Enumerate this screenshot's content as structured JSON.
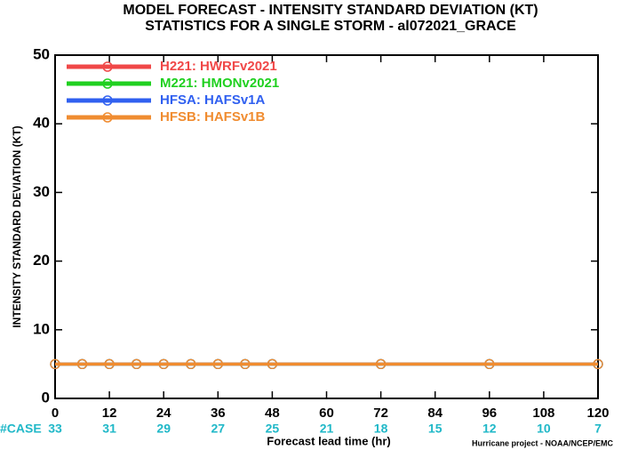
{
  "chart_data": {
    "type": "line",
    "title": "MODEL FORECAST - INTENSITY STANDARD DEVIATION (KT)",
    "subtitle": "STATISTICS FOR A SINGLE STORM - al072021_GRACE",
    "y_label": "INTENSITY STANDARD DEVIATION (KT)",
    "x_label": "Forecast lead time (hr)",
    "footer": "Hurricane project - NOAA/NCEP/EMC",
    "case_label": "#CASE",
    "case_counts": [
      33,
      31,
      29,
      27,
      25,
      21,
      18,
      15,
      12,
      10,
      7
    ],
    "case_color": "#20b8c8",
    "x": [
      0,
      6,
      12,
      18,
      24,
      30,
      36,
      42,
      48,
      72,
      96,
      120
    ],
    "series": [
      {
        "name": "H221: HWRFv2021",
        "color": "#f04848",
        "values": [
          5,
          5,
          5,
          5,
          5,
          5,
          5,
          5,
          5,
          5,
          5,
          5
        ]
      },
      {
        "name": "M221: HMONv2021",
        "color": "#20d020",
        "values": [
          5,
          5,
          5,
          5,
          5,
          5,
          5,
          5,
          5,
          5,
          5,
          5
        ]
      },
      {
        "name": "HFSA: HAFSv1A",
        "color": "#3060f0",
        "values": [
          5,
          5,
          5,
          5,
          5,
          5,
          5,
          5,
          5,
          5,
          5,
          5
        ]
      },
      {
        "name": "HFSB: HAFSv1B",
        "color": "#f08c30",
        "values": [
          5,
          5,
          5,
          5,
          5,
          5,
          5,
          5,
          5,
          5,
          5,
          5
        ]
      }
    ],
    "xlim": [
      0,
      120
    ],
    "xticks": [
      0,
      12,
      24,
      36,
      48,
      60,
      72,
      84,
      96,
      108,
      120
    ],
    "ylim": [
      0,
      50
    ],
    "yticks": [
      0,
      10,
      20,
      30,
      40,
      50
    ],
    "legend": "upper left"
  }
}
